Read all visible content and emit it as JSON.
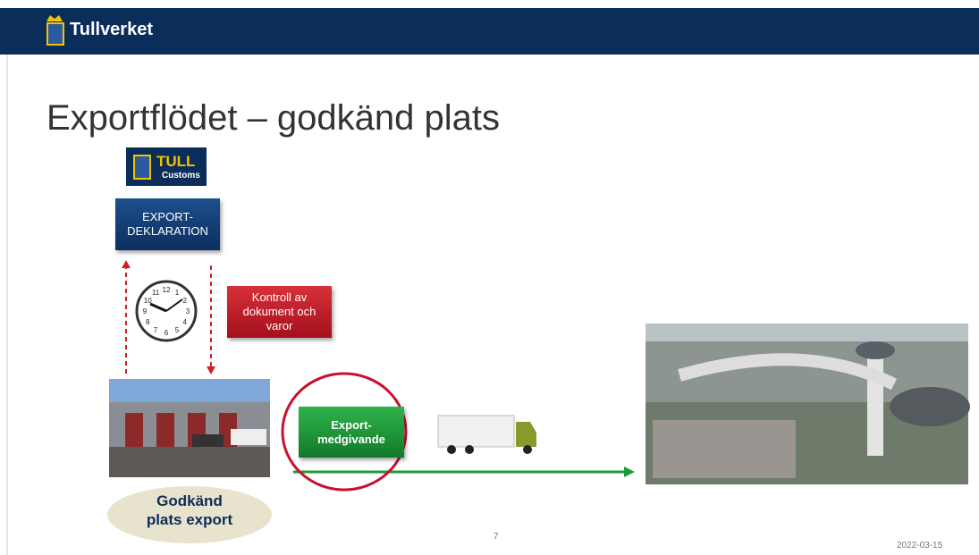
{
  "header": {
    "brand": "Tullverket"
  },
  "title": "Exportflödet – godkänd plats",
  "logo": {
    "name": "TULL",
    "sub": "Customs"
  },
  "boxes": {
    "declaration": "EXPORT-\nDEKLARATION",
    "control": "Kontroll av\ndokument och\nvaror",
    "release": "Export-\nmedgivande"
  },
  "place": "Godkänd\nplats export",
  "clock": {
    "numbers": [
      "12",
      "1",
      "2",
      "3",
      "4",
      "5",
      "6",
      "7",
      "8",
      "9",
      "10",
      "11"
    ]
  },
  "footer": {
    "page": "7",
    "date": "2022-03-15"
  }
}
